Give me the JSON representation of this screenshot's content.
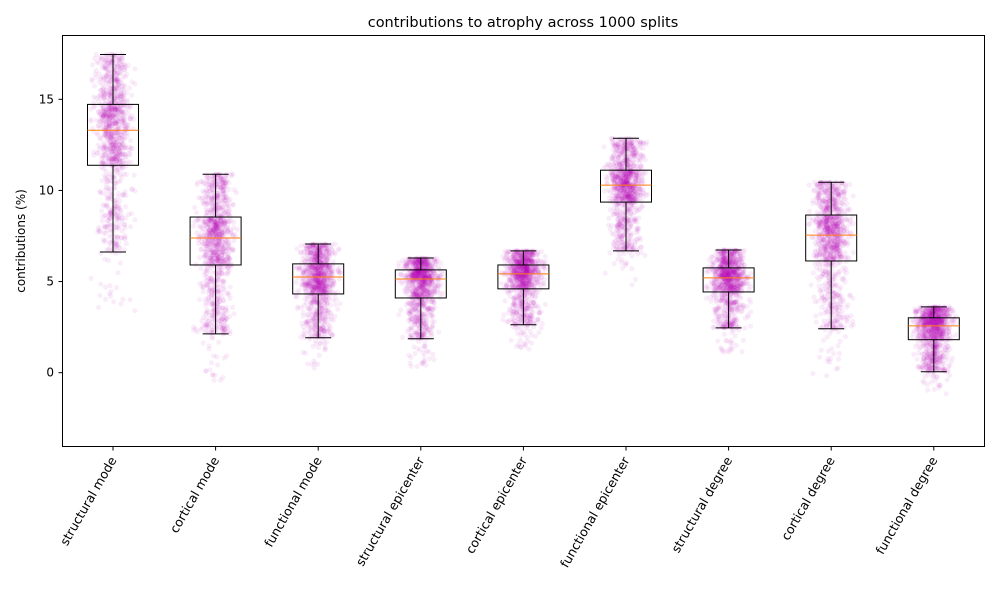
{
  "chart_data": {
    "type": "box",
    "title": "contributions to atrophy across 1000 splits",
    "xlabel": "",
    "ylabel": "contributions (%)",
    "ylim": [
      -4.05,
      18.5
    ],
    "yticks": [
      0,
      5,
      10,
      15
    ],
    "grid": false,
    "points_per_group": 1000,
    "colors": {
      "box": "#000000",
      "median": "#ff7f0e",
      "points": "#bf00bf"
    },
    "categories": [
      "structural mode",
      "cortical mode",
      "functional mode",
      "structural epicenter",
      "cortical epicenter",
      "functional epicenter",
      "structural degree",
      "cortical degree",
      "functional degree"
    ],
    "boxes": [
      {
        "whisker_low": 6.62,
        "q1": 11.38,
        "median": 13.3,
        "q3": 14.72,
        "whisker_high": 17.46
      },
      {
        "whisker_low": 2.13,
        "q1": 5.91,
        "median": 7.39,
        "q3": 8.54,
        "whisker_high": 10.89
      },
      {
        "whisker_low": 1.92,
        "q1": 4.32,
        "median": 5.25,
        "q3": 5.97,
        "whisker_high": 7.06
      },
      {
        "whisker_low": 1.86,
        "q1": 4.1,
        "median": 5.14,
        "q3": 5.64,
        "whisker_high": 6.29
      },
      {
        "whisker_low": 2.63,
        "q1": 4.6,
        "median": 5.42,
        "q3": 5.91,
        "whisker_high": 6.68
      },
      {
        "whisker_low": 6.68,
        "q1": 9.36,
        "median": 10.29,
        "q3": 11.11,
        "whisker_high": 12.86
      },
      {
        "whisker_low": 2.46,
        "q1": 4.43,
        "median": 5.2,
        "q3": 5.75,
        "whisker_high": 6.73
      },
      {
        "whisker_low": 2.41,
        "q1": 6.13,
        "median": 7.55,
        "q3": 8.65,
        "whisker_high": 10.45
      },
      {
        "whisker_low": 0.05,
        "q1": 1.81,
        "median": 2.57,
        "q3": 3.01,
        "whisker_high": 3.61
      }
    ]
  }
}
